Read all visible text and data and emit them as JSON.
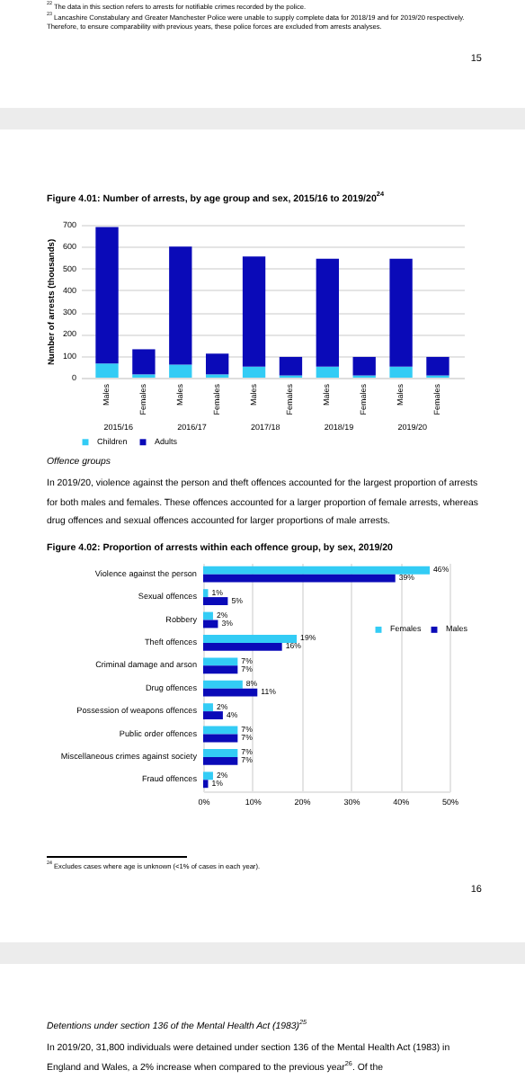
{
  "chart_data": [
    {
      "type": "bar",
      "title": "Figure 4.01: Number of arrests, by age group and sex, 2015/16 to 2019/20$^{24}$",
      "ylabel": "Number of arrests (thousands)",
      "categories": [
        "Males",
        "Females",
        "Males",
        "Females",
        "Males",
        "Females",
        "Males",
        "Females",
        "Males",
        "Females"
      ],
      "series": [
        {
          "name": "Children",
          "color": "#33ccf5",
          "values": [
            65,
            15,
            60,
            15,
            50,
            10,
            50,
            10,
            50,
            10
          ]
        },
        {
          "name": "Adults",
          "color": "#0a0ab8",
          "values": [
            625,
            115,
            540,
            95,
            505,
            85,
            495,
            85,
            495,
            85
          ]
        }
      ],
      "stacked": true,
      "ylim": [
        0,
        700
      ],
      "yticks": [
        0,
        100,
        200,
        300,
        400,
        500,
        600,
        700
      ],
      "grid": "y",
      "legend": "bottom",
      "annotations": [
        "2015/16",
        "2016/17",
        "2017/18",
        "2018/19",
        "2019/20",
        "$^{22}$ The data in this section refers to arrests for notifiable crimes recorded by the police.",
        "$^{23}$ Lancashire Constabulary and Greater Manchester Police were unable to supply complete data for 2018/19 and for 2019/20 respectively. Therefore, to ensure comparability with previous years, these police forces are excluded from arrests analyses.",
        "15",
        "Offence groups",
        "In 2019/20, violence against the person and theft offences accounted for the largest proportion of arrests for both males and females. These offences accounted for a larger proportion of female arrests, whereas drug offences and sexual offences accounted for larger proportions of male arrests."
      ]
    },
    {
      "type": "bar",
      "orientation": "horizontal",
      "title": "Figure 4.02: Proportion of arrests within each offence group, by sex, 2019/20",
      "categories": [
        "Violence against the person",
        "Sexual offences",
        "Robbery",
        "Theft offences",
        "Criminal damage and arson",
        "Drug offences",
        "Possession of weapons offences",
        "Public order offences",
        "Miscellaneous crimes against society",
        "Fraud offences"
      ],
      "series": [
        {
          "name": "Females",
          "color": "#33ccf5",
          "values": [
            46,
            1,
            2,
            19,
            7,
            8,
            2,
            7,
            7,
            2
          ],
          "value_labels": [
            "46%",
            "1%",
            "2%",
            "19%",
            "7%",
            "8%",
            "2%",
            "7%",
            "7%",
            "2%"
          ]
        },
        {
          "name": "Males",
          "color": "#0a0ab8",
          "values": [
            39,
            5,
            3,
            16,
            7,
            11,
            4,
            7,
            7,
            1
          ],
          "value_labels": [
            "39%",
            "5%",
            "3%",
            "16%",
            "7%",
            "11%",
            "4%",
            "7%",
            "7%",
            "1%"
          ]
        }
      ],
      "xlim": [
        0,
        50
      ],
      "xticks": [
        {
          "value": 0,
          "label": "0%"
        },
        {
          "value": 10,
          "label": "10%"
        },
        {
          "value": 20,
          "label": "20%"
        },
        {
          "value": 30,
          "label": "30%"
        },
        {
          "value": 40,
          "label": "40%"
        },
        {
          "value": 50,
          "label": "50%"
        }
      ],
      "grid": "x",
      "legend": "right",
      "annotations": [
        "$^{24}$ Excludes cases where age is unknown (<1% of cases in each year).",
        "16",
        "Detentions under section 136 of the Mental Health Act (1983)$^{25}$",
        "In 2019/20, 31,800 individuals were detained under section 136 of the Mental Health Act (1983) in England and Wales, a 2% increase when compared to the previous year$^{26}$. Of the"
      ]
    }
  ]
}
